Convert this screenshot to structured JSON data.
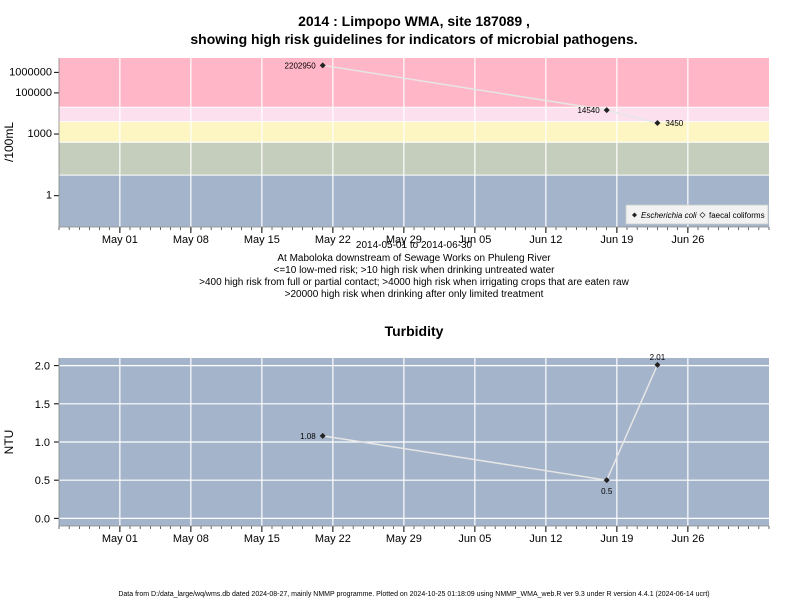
{
  "chart_data": [
    {
      "type": "line",
      "title_line1": "2014 : Limpopo WMA, site 187089 ,",
      "title_line2": "showing high risk guidelines for indicators of microbial pathogens.",
      "ylabel": "/100mL",
      "y_scale": "log",
      "ylim": [
        0.03,
        5000000
      ],
      "yticks": [
        {
          "value": 1000000,
          "label": "1000000"
        },
        {
          "value": 100000,
          "label": "100000"
        },
        {
          "value": 1000,
          "label": "1000"
        },
        {
          "value": 1,
          "label": "1"
        }
      ],
      "x_start": "2014-04-25",
      "x_end": "2014-07-04",
      "xticks": [
        {
          "date": "2014-05-01",
          "label": "May 01"
        },
        {
          "date": "2014-05-08",
          "label": "May 08"
        },
        {
          "date": "2014-05-15",
          "label": "May 15"
        },
        {
          "date": "2014-05-22",
          "label": "May 22"
        },
        {
          "date": "2014-05-29",
          "label": "May 29"
        },
        {
          "date": "2014-06-05",
          "label": "Jun 05"
        },
        {
          "date": "2014-06-12",
          "label": "Jun 12"
        },
        {
          "date": "2014-06-19",
          "label": "Jun 19"
        },
        {
          "date": "2014-06-26",
          "label": "Jun 26"
        }
      ],
      "risk_bands": [
        {
          "from": 20000,
          "to": 5000000,
          "color": "#ffb6c6"
        },
        {
          "from": 4000,
          "to": 20000,
          "color": "#fde0ee"
        },
        {
          "from": 400,
          "to": 4000,
          "color": "#fdf5c2"
        },
        {
          "from": 10,
          "to": 400,
          "color": "#c5cebc"
        },
        {
          "from": 0.03,
          "to": 10,
          "color": "#a4b4ca"
        }
      ],
      "series": [
        {
          "name": "Escherichia coli",
          "points": [
            {
              "date": "2014-05-21",
              "value": 2202950,
              "label": "2202950"
            },
            {
              "date": "2014-06-18",
              "value": 14540,
              "label": "14540"
            },
            {
              "date": "2014-06-23",
              "value": 3450,
              "label": "3450"
            }
          ]
        }
      ],
      "legend": {
        "position": "bottom-right",
        "entries": [
          "Escherichia coli",
          "faecal coliforms"
        ]
      },
      "subtitle_lines": [
        "2014-05-01 to 2014-06-30",
        "At Maboloka downstream of Sewage Works on Phuleng River",
        "<=10 low-med risk; >10 high risk when drinking untreated water",
        ">400 high risk from full or partial contact; >4000 high risk when irrigating crops that are eaten raw",
        ">20000 high risk when drinking after only limited treatment"
      ]
    },
    {
      "type": "line",
      "title": "Turbidity",
      "ylabel": "NTU",
      "ylim": [
        -0.1,
        2.1
      ],
      "yticks": [
        {
          "value": 0.0,
          "label": "0.0"
        },
        {
          "value": 0.5,
          "label": "0.5"
        },
        {
          "value": 1.0,
          "label": "1.0"
        },
        {
          "value": 1.5,
          "label": "1.5"
        },
        {
          "value": 2.0,
          "label": "2.0"
        }
      ],
      "x_start": "2014-04-25",
      "x_end": "2014-07-04",
      "xticks": [
        {
          "date": "2014-05-01",
          "label": "May 01"
        },
        {
          "date": "2014-05-08",
          "label": "May 08"
        },
        {
          "date": "2014-05-15",
          "label": "May 15"
        },
        {
          "date": "2014-05-22",
          "label": "May 22"
        },
        {
          "date": "2014-05-29",
          "label": "May 29"
        },
        {
          "date": "2014-06-05",
          "label": "Jun 05"
        },
        {
          "date": "2014-06-12",
          "label": "Jun 12"
        },
        {
          "date": "2014-06-19",
          "label": "Jun 19"
        },
        {
          "date": "2014-06-26",
          "label": "Jun 26"
        }
      ],
      "background_color": "#a4b4ca",
      "series": [
        {
          "points": [
            {
              "date": "2014-05-21",
              "value": 1.08,
              "label": "1.08"
            },
            {
              "date": "2014-06-18",
              "value": 0.5,
              "label": "0.5"
            },
            {
              "date": "2014-06-23",
              "value": 2.01,
              "label": "2.01"
            }
          ]
        }
      ]
    }
  ],
  "footer": "Data from D:/data_large/wq/wms.db dated 2024-08-27, mainly NMMP programme. Plotted on 2024-10-25 01:18:09 using NMMP_WMA_web.R ver 9.3 under R version 4.4.1 (2024-06-14 ucrt)"
}
